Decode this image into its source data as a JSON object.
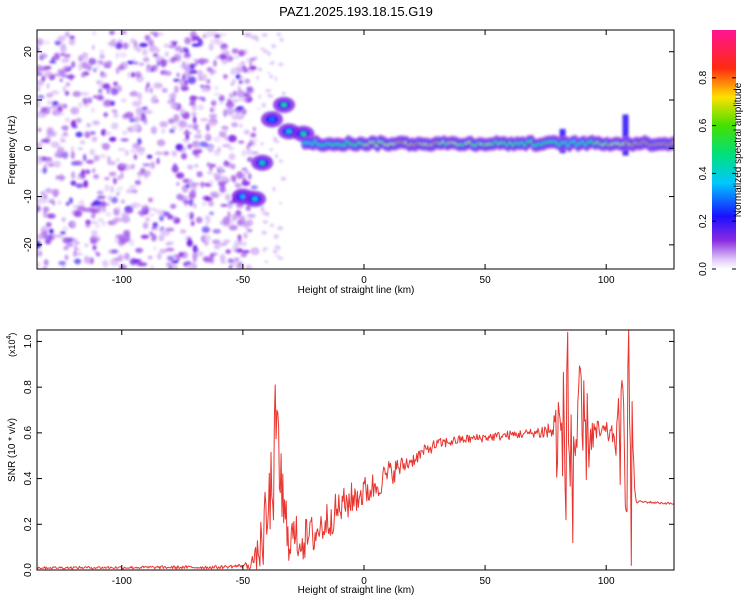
{
  "figure": {
    "title": "PAZ1.2025.193.18.15.G19"
  },
  "chart_data": [
    {
      "type": "heatmap",
      "title": "PAZ1.2025.193.18.15.G19",
      "xlabel": "Height of straight line (km)",
      "ylabel": "Frequency (Hz)",
      "xlim": [
        -135,
        128
      ],
      "ylim": [
        -25,
        24.5
      ],
      "xticks": [
        "-100",
        "-50",
        "0",
        "50",
        "100"
      ],
      "xtick_values": [
        -100,
        -50,
        0,
        50,
        100
      ],
      "yticks": [
        "-20",
        "-10",
        "0",
        "10",
        "20"
      ],
      "ytick_values": [
        -20,
        -10,
        0,
        10,
        20
      ],
      "colorbar": {
        "label": "Normalized spectral amplitude",
        "ticks": [
          "0.0",
          "0.2",
          "0.4",
          "0.6",
          "0.8"
        ],
        "tick_values": [
          0.0,
          0.2,
          0.4,
          0.6,
          0.8
        ],
        "range": [
          0,
          1
        ],
        "colormap": "rainbow (purple-blue-cyan-green-yellow-red-magenta)"
      },
      "features": {
        "noise_region_x": [
          -135,
          -45
        ],
        "noise_frequency_range": [
          -25,
          24
        ],
        "noise_typical_amplitude": 0.1,
        "early_signal": [
          {
            "x": -50,
            "y": -10,
            "amplitude": 0.35
          },
          {
            "x": -45,
            "y": -10.5,
            "amplitude": 0.4
          },
          {
            "x": -42,
            "y": -3,
            "amplitude": 0.45
          },
          {
            "x": -38,
            "y": 6,
            "amplitude": 0.3
          },
          {
            "x": -33,
            "y": 9,
            "amplitude": 0.55
          },
          {
            "x": -31,
            "y": 3.5,
            "amplitude": 0.4
          },
          {
            "x": -25,
            "y": 3,
            "amplitude": 0.5
          }
        ],
        "main_line_frequency": 1.0,
        "main_line_x": [
          -25,
          128
        ],
        "main_line_amplitude_path": [
          {
            "x": -25,
            "amp": 0.4
          },
          {
            "x": -15,
            "amp": 0.5
          },
          {
            "x": -5,
            "amp": 0.6
          },
          {
            "x": 5,
            "amp": 0.75
          },
          {
            "x": 15,
            "amp": 0.8
          },
          {
            "x": 25,
            "amp": 0.85
          },
          {
            "x": 35,
            "amp": 0.7
          },
          {
            "x": 50,
            "amp": 0.65
          },
          {
            "x": 65,
            "amp": 0.55
          },
          {
            "x": 80,
            "amp": 0.5
          },
          {
            "x": 88,
            "amp": 0.4
          },
          {
            "x": 100,
            "amp": 0.75
          },
          {
            "x": 110,
            "amp": 0.85
          },
          {
            "x": 128,
            "amp": 0.95
          }
        ],
        "spikes": [
          {
            "x": 82,
            "y_range": [
              -1,
              4
            ]
          },
          {
            "x": 108,
            "y_range": [
              -1.5,
              7
            ]
          }
        ]
      }
    },
    {
      "type": "line",
      "xlabel": "Height of straight line (km)",
      "ylabel": "SNR (10 * v/v)",
      "yscale_label": "(x10",
      "yscale_exponent": "4",
      "yscale_suffix": ")",
      "xlim": [
        -135,
        128
      ],
      "ylim": [
        0,
        1.05
      ],
      "xticks": [
        "-100",
        "-50",
        "0",
        "50",
        "100"
      ],
      "xtick_values": [
        -100,
        -50,
        0,
        50,
        100
      ],
      "yticks": [
        "0.0",
        "0.2",
        "0.4",
        "0.6",
        "0.8",
        "1.0"
      ],
      "ytick_values": [
        0,
        0.2,
        0.4,
        0.6,
        0.8,
        1.0
      ],
      "line_color": "#e8352f",
      "series": [
        {
          "baseline": [
            [
              -135,
              0.01
            ],
            [
              -60,
              0.012
            ],
            [
              -48,
              0.02
            ],
            [
              -44,
              0.06
            ],
            [
              -40,
              0.2
            ],
            [
              -37,
              0.45
            ],
            [
              -35,
              0.5
            ],
            [
              -33,
              0.2
            ],
            [
              -30,
              0.15
            ],
            [
              -25,
              0.13
            ],
            [
              -20,
              0.16
            ],
            [
              -15,
              0.22
            ],
            [
              -10,
              0.27
            ],
            [
              -5,
              0.31
            ],
            [
              0,
              0.34
            ],
            [
              5,
              0.37
            ],
            [
              10,
              0.42
            ],
            [
              15,
              0.45
            ],
            [
              20,
              0.48
            ],
            [
              25,
              0.52
            ],
            [
              30,
              0.55
            ],
            [
              40,
              0.57
            ],
            [
              50,
              0.58
            ],
            [
              60,
              0.59
            ],
            [
              70,
              0.6
            ],
            [
              78,
              0.61
            ],
            [
              85,
              0.55
            ],
            [
              90,
              0.58
            ],
            [
              95,
              0.6
            ],
            [
              100,
              0.6
            ],
            [
              105,
              0.58
            ],
            [
              108,
              0.6
            ],
            [
              111,
              0.58
            ],
            [
              112,
              0.3
            ],
            [
              128,
              0.29
            ]
          ],
          "noise_amplitude": [
            [
              -135,
              0.005
            ],
            [
              -50,
              0.008
            ],
            [
              -45,
              0.04
            ],
            [
              -40,
              0.2
            ],
            [
              -35,
              0.25
            ],
            [
              -30,
              0.1
            ],
            [
              -10,
              0.08
            ],
            [
              0,
              0.07
            ],
            [
              10,
              0.06
            ],
            [
              20,
              0.03
            ],
            [
              40,
              0.02
            ],
            [
              70,
              0.02
            ],
            [
              78,
              0.06
            ],
            [
              80,
              0.25
            ],
            [
              85,
              0.4
            ],
            [
              90,
              0.3
            ],
            [
              95,
              0.06
            ],
            [
              103,
              0.04
            ],
            [
              107,
              0.3
            ],
            [
              110,
              0.45
            ],
            [
              111,
              0.05
            ],
            [
              113,
              0.005
            ],
            [
              128,
              0.005
            ]
          ],
          "peaks": [
            {
              "x": -37,
              "y": 0.81
            },
            {
              "x": 84,
              "y": 1.04
            },
            {
              "x": 86,
              "y": 0.12
            },
            {
              "x": 109,
              "y": 1.05
            },
            {
              "x": 110,
              "y": 0.02
            }
          ]
        }
      ]
    }
  ]
}
